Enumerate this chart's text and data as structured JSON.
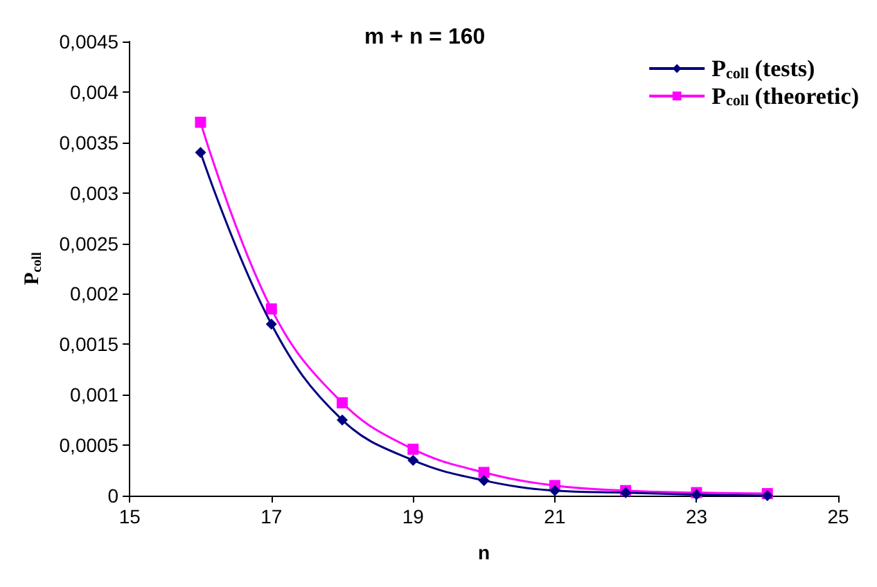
{
  "chart_data": {
    "type": "line",
    "title": "m + n = 160",
    "xlabel": "n",
    "ylabel": "P$_{coll}$",
    "x": [
      16,
      17,
      18,
      19,
      20,
      21,
      22,
      23,
      24
    ],
    "series": [
      {
        "name": "P$_{coll}$ (tests)",
        "color": "#000080",
        "marker": "diamond",
        "values": [
          0.0034,
          0.0017,
          0.00075,
          0.00035,
          0.00015,
          5e-05,
          3e-05,
          1e-05,
          0
        ]
      },
      {
        "name": "P$_{coll}$ (theoretic)",
        "color": "#ff00ff",
        "marker": "square",
        "values": [
          0.0037,
          0.00185,
          0.00092,
          0.00046,
          0.00023,
          0.0001,
          5e-05,
          3e-05,
          2e-05
        ]
      }
    ],
    "xlim": [
      15,
      25
    ],
    "xticks": [
      15,
      17,
      19,
      21,
      23,
      25
    ],
    "ylim": [
      0,
      0.0045
    ],
    "yticks": [
      0,
      {
        "value": 0.0005,
        "label": "0,0005"
      },
      {
        "value": 0.001,
        "label": "0,001"
      },
      {
        "value": 0.0015,
        "label": "0,0015"
      },
      {
        "value": 0.002,
        "label": "0,002"
      },
      {
        "value": 0.0025,
        "label": "0,0025"
      },
      {
        "value": 0.003,
        "label": "0,003"
      },
      {
        "value": 0.0035,
        "label": "0,0035"
      },
      {
        "value": 0.004,
        "label": "0,004"
      },
      {
        "value": 0.0045,
        "label": "0,0045"
      }
    ],
    "grid": false,
    "legend": "top right",
    "line_style": "solid"
  }
}
